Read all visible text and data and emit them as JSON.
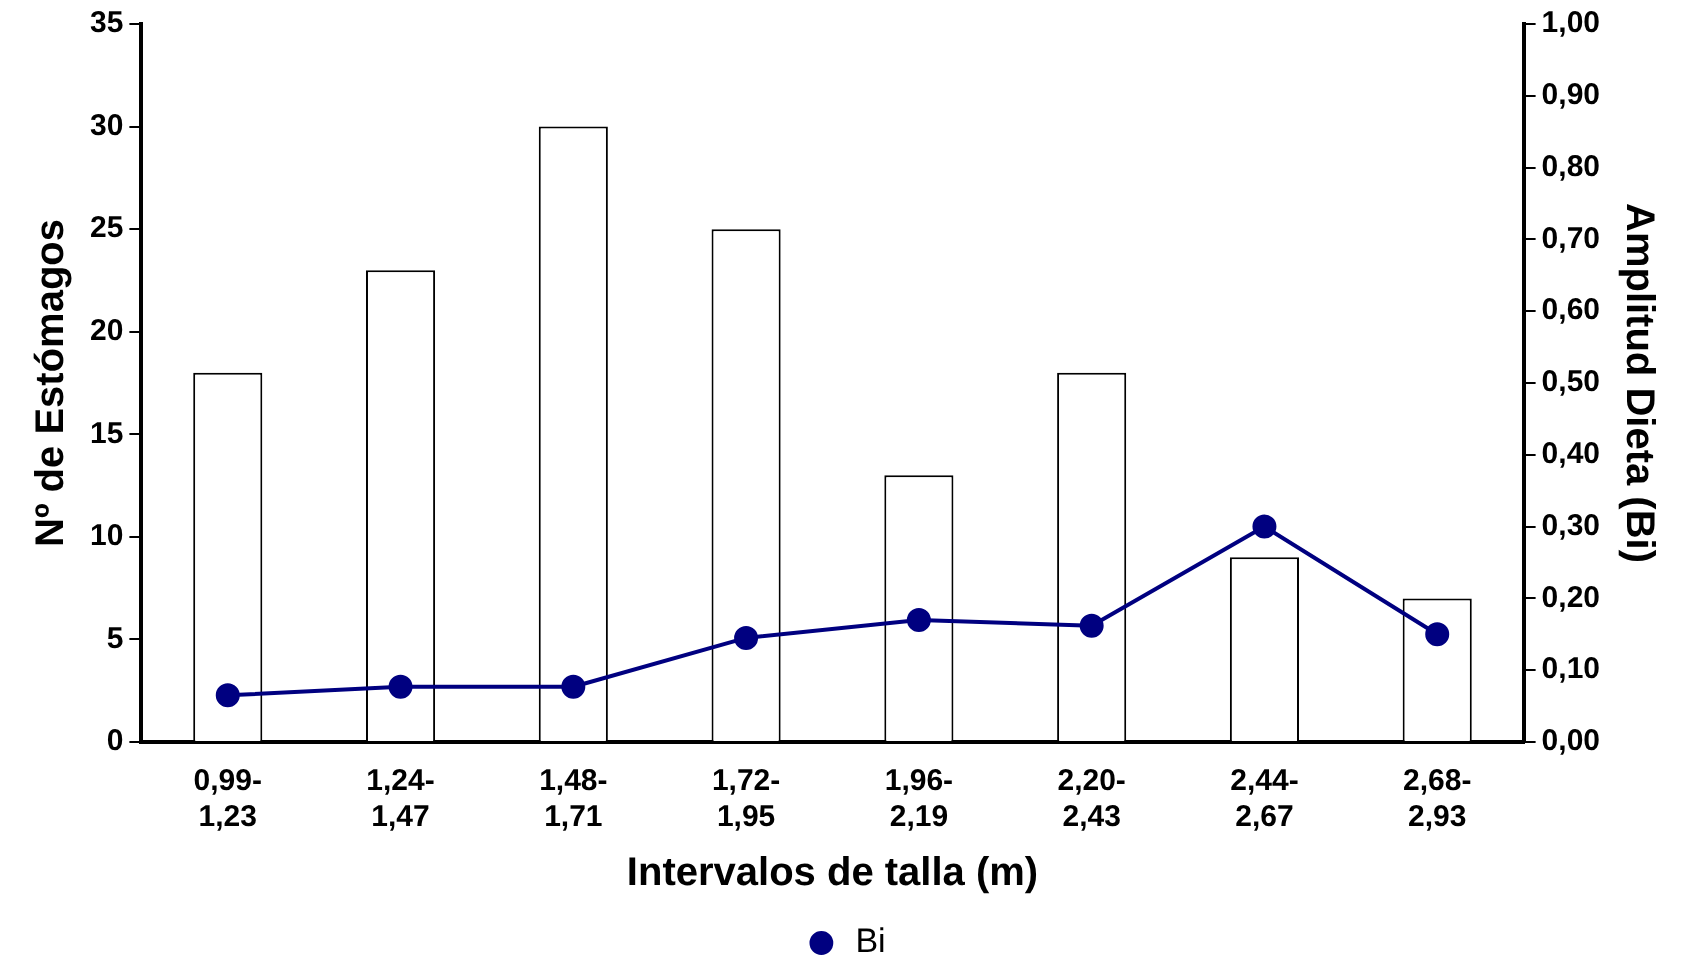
{
  "chart_data": {
    "type": "bar",
    "xlabel": "Intervalos de talla (m)",
    "ylabel": "Nº de Estómagos",
    "y2label": "Amplitud Dieta (Bi)",
    "categories": [
      "0,99-1,23",
      "1,24-1,47",
      "1,48-1,71",
      "1,72-1,95",
      "1,96-2,19",
      "2,20-2,43",
      "2,44-2,67",
      "2,68-2,93"
    ],
    "series": [
      {
        "color": "#ffffff",
        "values": [
          18,
          23,
          30,
          25,
          13,
          18,
          9,
          7
        ]
      },
      {
        "type": "line",
        "name": "Bi",
        "color": "#000080",
        "axis": "y2",
        "values": [
          0.065,
          0.077,
          0.077,
          0.145,
          0.17,
          0.162,
          0.3,
          0.15
        ]
      }
    ],
    "ylim": [
      0,
      35
    ],
    "yticks": [
      0,
      5,
      10,
      15,
      20,
      25,
      30,
      35
    ],
    "y2lim": [
      0,
      1
    ],
    "y2ticks": [
      {
        "value": 0,
        "label": "0,00"
      },
      {
        "value": 0.1,
        "label": "0,10"
      },
      {
        "value": 0.2,
        "label": "0,20"
      },
      {
        "value": 0.3,
        "label": "0,30"
      },
      {
        "value": 0.4,
        "label": "0,40"
      },
      {
        "value": 0.5,
        "label": "0,50"
      },
      {
        "value": 0.6,
        "label": "0,60"
      },
      {
        "value": 0.7,
        "label": "0,70"
      },
      {
        "value": 0.8,
        "label": "0,80"
      },
      {
        "value": 0.9,
        "label": "0,90"
      },
      {
        "value": 1,
        "label": "1,00"
      }
    ],
    "grid": false,
    "legend": "bottom",
    "marker": "circle"
  }
}
